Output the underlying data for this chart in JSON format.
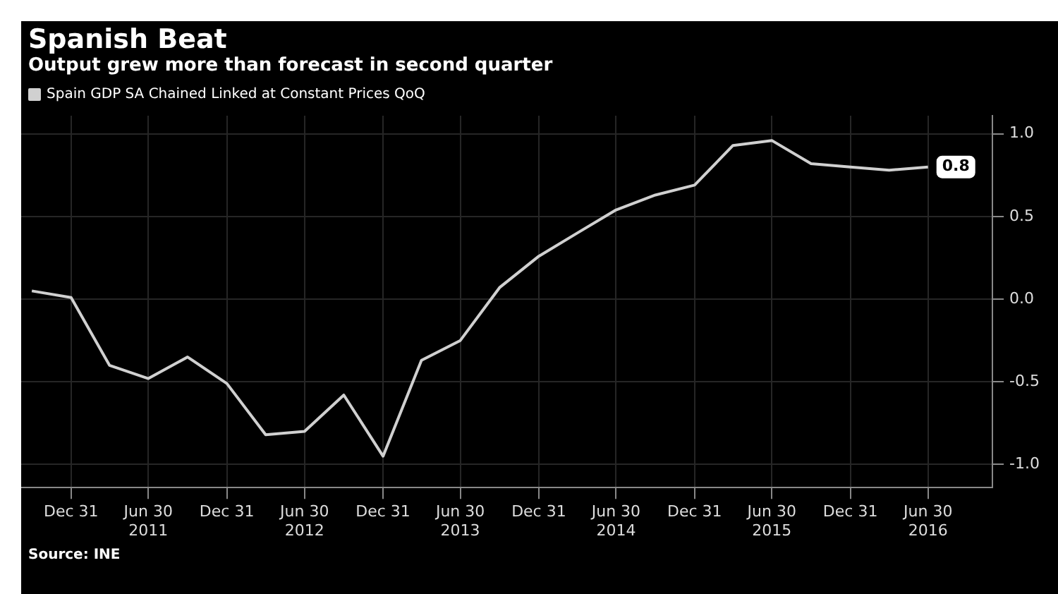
{
  "chart_data": {
    "type": "line",
    "title": "Spanish Beat",
    "subtitle": "Output grew more than forecast in second quarter",
    "x": [
      "2010-09-30",
      "2010-12-31",
      "2011-03-31",
      "2011-06-30",
      "2011-09-30",
      "2011-12-31",
      "2012-03-31",
      "2012-06-30",
      "2012-09-30",
      "2012-12-31",
      "2013-03-31",
      "2013-06-30",
      "2013-09-30",
      "2013-12-31",
      "2014-03-31",
      "2014-06-30",
      "2014-09-30",
      "2014-12-31",
      "2015-03-31",
      "2015-06-30",
      "2015-09-30",
      "2015-12-31",
      "2016-03-31",
      "2016-06-30"
    ],
    "series": [
      {
        "name": "Spain GDP SA Chained Linked at Constant Prices QoQ",
        "color": "#d0d0d0",
        "values": [
          0.05,
          0.01,
          -0.4,
          -0.48,
          -0.35,
          -0.51,
          -0.82,
          -0.8,
          -0.58,
          -0.95,
          -0.37,
          -0.25,
          0.07,
          0.26,
          0.4,
          0.54,
          0.63,
          0.69,
          0.93,
          0.96,
          0.82,
          0.8,
          0.78,
          0.8
        ],
        "value_labels": [
          null,
          null,
          null,
          null,
          null,
          null,
          null,
          null,
          null,
          null,
          null,
          null,
          null,
          null,
          null,
          null,
          null,
          null,
          null,
          null,
          null,
          null,
          null,
          "0.8"
        ]
      }
    ],
    "xlim": [
      "2010-09-05",
      "2016-11-28"
    ],
    "xticks": [
      {
        "value": "2010-12-31",
        "label": "Dec 31"
      },
      {
        "value": "2011-06-30",
        "label": "Jun 30\n2011"
      },
      {
        "value": "2011-12-31",
        "label": "Dec 31"
      },
      {
        "value": "2012-06-30",
        "label": "Jun 30\n2012"
      },
      {
        "value": "2012-12-31",
        "label": "Dec 31"
      },
      {
        "value": "2013-06-30",
        "label": "Jun 30\n2013"
      },
      {
        "value": "2013-12-31",
        "label": "Dec 31"
      },
      {
        "value": "2014-06-30",
        "label": "Jun 30\n2014"
      },
      {
        "value": "2014-12-31",
        "label": "Dec 31"
      },
      {
        "value": "2015-06-30",
        "label": "Jun 30\n2015"
      },
      {
        "value": "2015-12-31",
        "label": "Dec 31"
      },
      {
        "value": "2016-06-30",
        "label": "Jun 30\n2016"
      }
    ],
    "ylim": [
      -1.14,
      1.11
    ],
    "yticks": [
      {
        "value": 1,
        "label": "1.0"
      },
      {
        "value": 0.5,
        "label": "0.5"
      },
      {
        "value": 0,
        "label": "0.0"
      },
      {
        "value": -0.5,
        "label": "-0.5"
      },
      {
        "value": -1,
        "label": "-1.0"
      }
    ],
    "grid": true,
    "legend": "top left",
    "marker": "none",
    "line_style": "solid",
    "annotations": [
      "Source: INE"
    ]
  }
}
